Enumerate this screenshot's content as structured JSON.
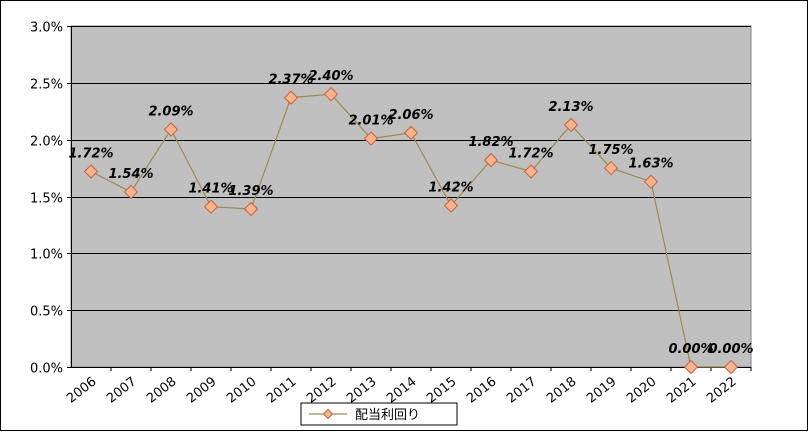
{
  "chart_data": {
    "type": "line",
    "categories": [
      "2006",
      "2007",
      "2008",
      "2009",
      "2010",
      "2011",
      "2012",
      "2013",
      "2014",
      "2015",
      "2016",
      "2017",
      "2018",
      "2019",
      "2020",
      "2021",
      "2022"
    ],
    "series": [
      {
        "name": "配当利回り",
        "values": [
          1.72,
          1.54,
          2.09,
          1.41,
          1.39,
          2.37,
          2.4,
          2.01,
          2.06,
          1.42,
          1.82,
          1.72,
          2.13,
          1.75,
          1.63,
          0.0,
          0.0
        ],
        "labels": [
          "1.72%",
          "1.54%",
          "2.09%",
          "1.41%",
          "1.39%",
          "2.37%",
          "2.40%",
          "2.01%",
          "2.06%",
          "1.42%",
          "1.82%",
          "1.72%",
          "2.13%",
          "1.75%",
          "1.63%",
          "0.00%",
          "0.00%"
        ]
      }
    ],
    "y_ticks": [
      {
        "value": 0.0,
        "label": "0.0%"
      },
      {
        "value": 0.5,
        "label": "0.5%"
      },
      {
        "value": 1.0,
        "label": "1.0%"
      },
      {
        "value": 1.5,
        "label": "1.5%"
      },
      {
        "value": 2.0,
        "label": "2.0%"
      },
      {
        "value": 2.5,
        "label": "2.5%"
      },
      {
        "value": 3.0,
        "label": "3.0%"
      }
    ],
    "ylim": [
      0,
      3.0
    ],
    "grid": true,
    "legend_position": "bottom",
    "colors": {
      "plot_background": "#c0c0c0",
      "line": "#9c8a50",
      "marker_fill": "#f9b48e",
      "marker_stroke": "#c8603c",
      "gridline": "#000000"
    }
  }
}
